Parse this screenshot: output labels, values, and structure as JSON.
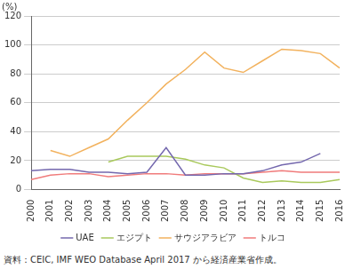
{
  "chart_data": {
    "type": "line",
    "ylabel": "(%)",
    "source": "資料：CEIC, IMF WEO Database April 2017 から経済産業省作成。",
    "categories": [
      "2000",
      "2001",
      "2002",
      "2003",
      "2004",
      "2005",
      "2006",
      "2007",
      "2008",
      "2009",
      "2010",
      "2011",
      "2012",
      "2013",
      "2014",
      "2015",
      "2016"
    ],
    "series": [
      {
        "name": "UAE",
        "color": "#7468ae",
        "values": [
          13,
          14,
          14,
          12,
          12,
          11,
          12,
          29,
          10,
          10,
          11,
          11,
          13,
          17,
          19,
          25,
          null
        ]
      },
      {
        "name": "エジプト",
        "color": "#a9c95c",
        "values": [
          null,
          null,
          null,
          null,
          19,
          23,
          23,
          23,
          21,
          17,
          15,
          8,
          5,
          6,
          5,
          5,
          7
        ]
      },
      {
        "name": "サウジアラビア",
        "color": "#f2b25e",
        "values": [
          null,
          27,
          23,
          29,
          35,
          48,
          60,
          73,
          83,
          95,
          84,
          81,
          89,
          97,
          96,
          94,
          84
        ]
      },
      {
        "name": "トルコ",
        "color": "#f07b7b",
        "values": [
          7,
          10,
          11,
          11,
          9,
          10,
          11,
          11,
          10,
          11,
          11,
          11,
          12,
          13,
          12,
          12,
          12
        ]
      }
    ],
    "ylim": [
      0,
      120
    ],
    "yticks": [
      0,
      20,
      40,
      60,
      80,
      100,
      120
    ],
    "grid": true,
    "legend": "bottom"
  }
}
